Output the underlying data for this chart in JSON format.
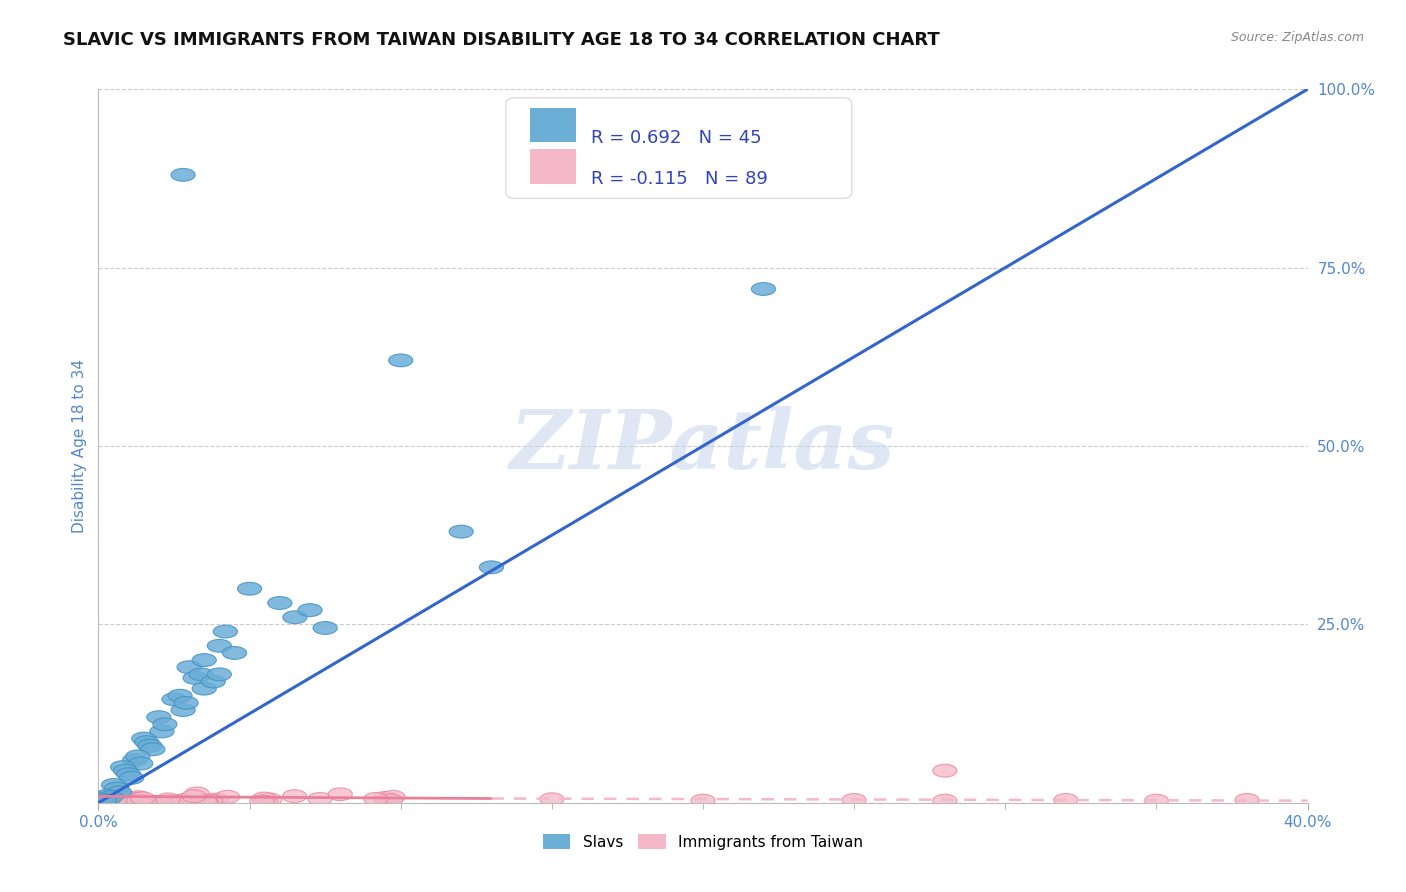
{
  "title": "SLAVIC VS IMMIGRANTS FROM TAIWAN DISABILITY AGE 18 TO 34 CORRELATION CHART",
  "source_text": "Source: ZipAtlas.com",
  "ylabel": "Disability Age 18 to 34",
  "xlim": [
    0.0,
    0.4
  ],
  "ylim": [
    0.0,
    1.0
  ],
  "slavs_color": "#6BAED6",
  "slavs_edge_color": "#4292C6",
  "taiwan_color": "#F4B8C8",
  "taiwan_edge_color": "#E8809A",
  "slavs_line_color": "#3366CC",
  "taiwan_line_solid_color": "#E8809A",
  "taiwan_line_dash_color": "#F4B8C8",
  "background_color": "#FFFFFF",
  "grid_color": "#CCCCCC",
  "R_slavs": 0.692,
  "N_slavs": 45,
  "R_taiwan": -0.115,
  "N_taiwan": 89,
  "watermark_text": "ZIPatlas",
  "watermark_color": "#C8D8EC",
  "legend_R_color": "#3344BB",
  "title_fontsize": 13,
  "axis_label_fontsize": 11,
  "tick_fontsize": 11,
  "legend_fontsize": 13,
  "tick_color": "#5588CC",
  "ylabel_color": "#5588CC"
}
